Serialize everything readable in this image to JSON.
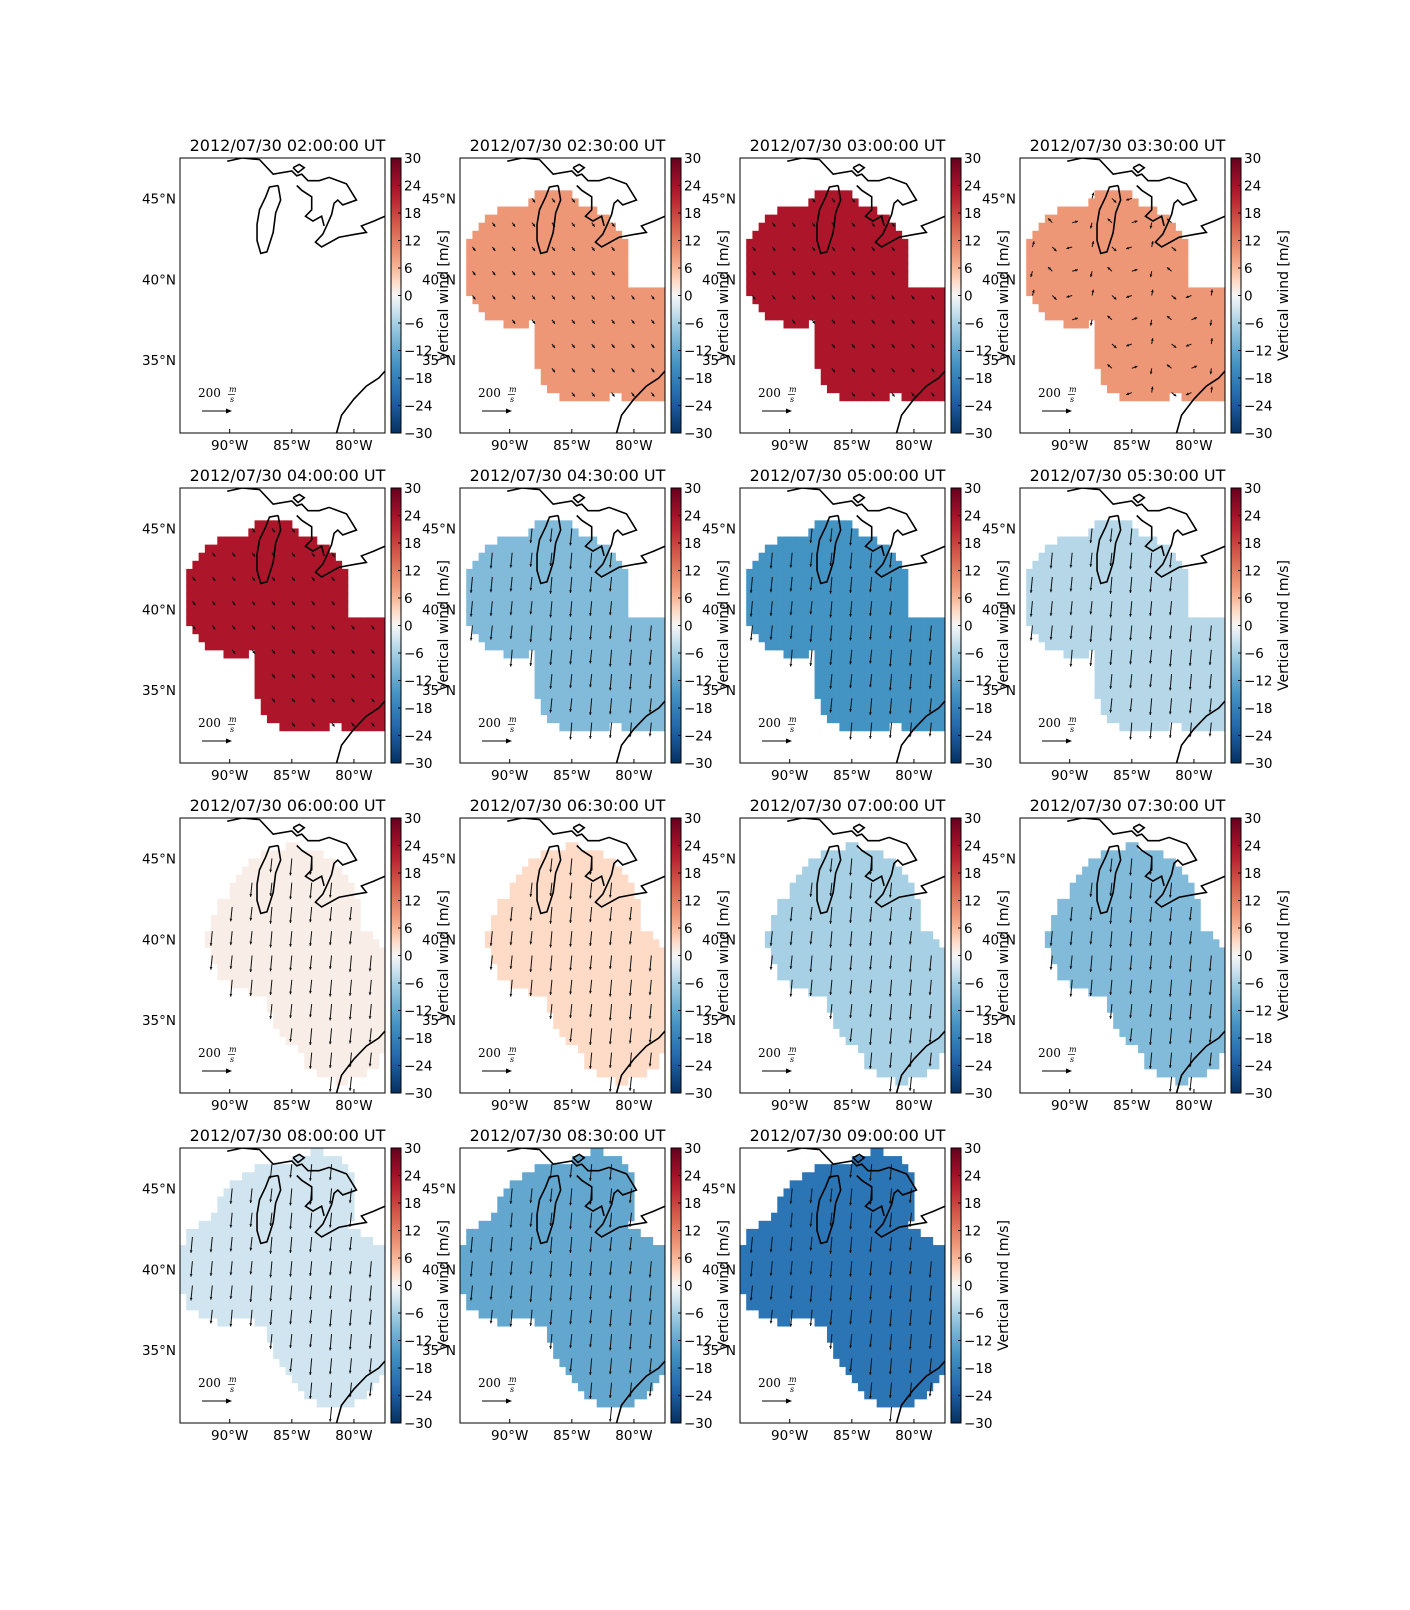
{
  "figure": {
    "colorbar_label": "Vertical wind [m/s]",
    "colormap": "RdBu_r",
    "colorbar_ticks": [
      "30",
      "24",
      "18",
      "12",
      "6",
      "0",
      "−6",
      "−12",
      "−18",
      "−24",
      "−30"
    ],
    "lon_ticks": [
      "90°W",
      "85°W",
      "80°W"
    ],
    "lat_ticks": [
      "45°N",
      "40°N",
      "35°N"
    ],
    "reference_arrow_label": "200",
    "reference_arrow_unit_num": "m",
    "reference_arrow_unit_den": "s"
  },
  "chart_data": {
    "type": "heatmap",
    "variable": "Vertical wind",
    "units": "m/s",
    "colorbar_range": [
      -30,
      30
    ],
    "lon_range": [
      -94,
      -77.5
    ],
    "lat_range": [
      30.5,
      47.5
    ],
    "panels": [
      {
        "title": "2012/07/30 02:00:00 UT",
        "value": null,
        "region": "none",
        "arrows": "none"
      },
      {
        "title": "2012/07/30 02:30:00 UT",
        "value": 9,
        "region": "circles",
        "arrows": "short"
      },
      {
        "title": "2012/07/30 03:00:00 UT",
        "value": 23,
        "region": "circles",
        "arrows": "short"
      },
      {
        "title": "2012/07/30 03:30:00 UT",
        "value": 9,
        "region": "circles",
        "arrows": "mixed"
      },
      {
        "title": "2012/07/30 04:00:00 UT",
        "value": 23,
        "region": "circles",
        "arrows": "short"
      },
      {
        "title": "2012/07/30 04:30:00 UT",
        "value": -9,
        "region": "circles",
        "arrows": "south"
      },
      {
        "title": "2012/07/30 05:00:00 UT",
        "value": -15,
        "region": "circles",
        "arrows": "south"
      },
      {
        "title": "2012/07/30 05:30:00 UT",
        "value": -5,
        "region": "circles",
        "arrows": "south"
      },
      {
        "title": "2012/07/30 06:00:00 UT",
        "value": 1,
        "region": "broad",
        "arrows": "south"
      },
      {
        "title": "2012/07/30 06:30:00 UT",
        "value": 3,
        "region": "broad",
        "arrows": "south"
      },
      {
        "title": "2012/07/30 07:00:00 UT",
        "value": -6,
        "region": "broad",
        "arrows": "south"
      },
      {
        "title": "2012/07/30 07:30:00 UT",
        "value": -9,
        "region": "broad",
        "arrows": "south"
      },
      {
        "title": "2012/07/30 08:00:00 UT",
        "value": -3,
        "region": "wide",
        "arrows": "south"
      },
      {
        "title": "2012/07/30 08:30:00 UT",
        "value": -12,
        "region": "wide",
        "arrows": "south"
      },
      {
        "title": "2012/07/30 09:00:00 UT",
        "value": -20,
        "region": "wide",
        "arrows": "south"
      }
    ]
  }
}
